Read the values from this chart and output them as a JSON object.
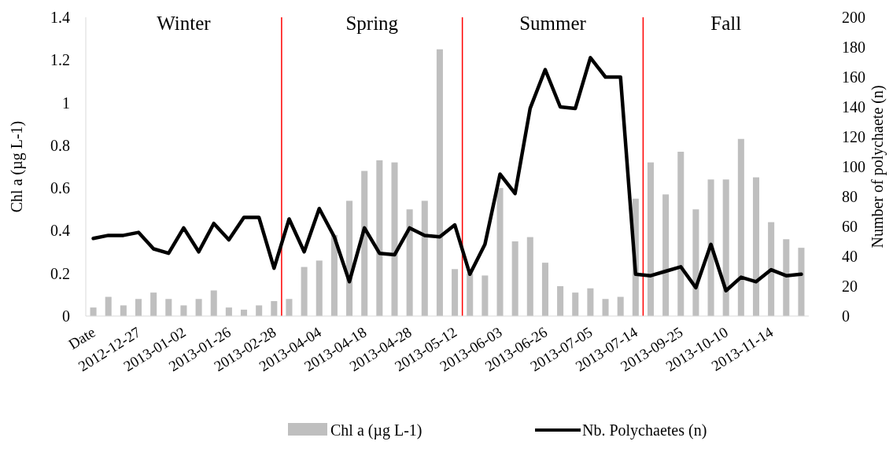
{
  "chart_data": {
    "type": "bar",
    "ylabel": "Chl a (µg L-1)",
    "y2label": "Number of polychaete (n)",
    "categories": [
      "Date",
      null,
      null,
      "2012-12-27",
      null,
      null,
      "2013-01-02",
      null,
      null,
      "2013-01-26",
      null,
      null,
      "2013-02-28",
      null,
      null,
      "2013-04-04",
      null,
      null,
      "2013-04-18",
      null,
      null,
      "2013-04-28",
      null,
      null,
      "2013-05-12",
      null,
      null,
      "2013-06-03",
      null,
      null,
      "2013-06-26",
      null,
      null,
      "2013-07-05",
      null,
      null,
      "2013-07-14",
      null,
      null,
      "2013-09-25",
      null,
      null,
      "2013-10-10",
      null,
      null,
      "2013-11-14",
      null,
      null
    ],
    "series": [
      {
        "name": "Chl a (µg L-1)",
        "color": "#bfbfbf",
        "values": [
          0.04,
          0.09,
          0.05,
          0.08,
          0.11,
          0.08,
          0.05,
          0.08,
          0.12,
          0.04,
          0.03,
          0.05,
          0.07,
          0.08,
          0.23,
          0.26,
          0.38,
          0.54,
          0.68,
          0.73,
          0.72,
          0.5,
          0.54,
          1.25,
          0.22,
          0.2,
          0.19,
          0.6,
          0.35,
          0.37,
          0.25,
          0.14,
          0.11,
          0.13,
          0.08,
          0.09,
          0.55,
          0.72,
          0.57,
          0.77,
          0.5,
          0.64,
          0.64,
          0.83,
          0.65,
          0.44,
          0.36,
          0.32
        ]
      },
      {
        "name": "Nb. Polychaetes (n)",
        "type": "line",
        "axis": "y2",
        "color": "#000000",
        "values": [
          52,
          54,
          54,
          56,
          45,
          42,
          59,
          43,
          62,
          51,
          66,
          66,
          32,
          65,
          43,
          72,
          53,
          23,
          59,
          42,
          41,
          59,
          54,
          53,
          61,
          28,
          48,
          95,
          82,
          139,
          165,
          140,
          139,
          173,
          160,
          160,
          28,
          27,
          30,
          33,
          19,
          48,
          17,
          26,
          23,
          31,
          27,
          28
        ]
      }
    ],
    "ylim": [
      0,
      1.4
    ],
    "yticks": [
      0,
      0.2,
      0.4,
      0.6,
      0.8,
      1,
      1.2,
      1.4
    ],
    "y2lim": [
      0,
      200
    ],
    "y2ticks": [
      0,
      20,
      40,
      60,
      80,
      100,
      120,
      140,
      160,
      180,
      200
    ],
    "annotations": [
      "Winter",
      "Spring",
      "Summer",
      "Fall"
    ],
    "legend": "bottom",
    "grid": false,
    "line_style": "solid",
    "marker": "none"
  }
}
